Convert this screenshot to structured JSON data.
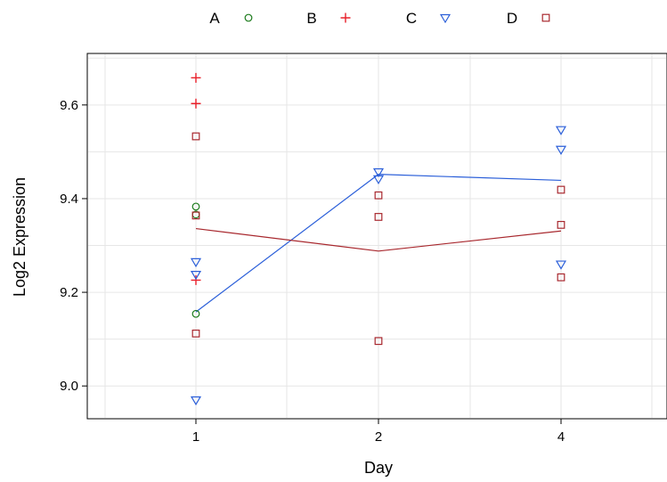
{
  "chart_data": {
    "type": "scatter",
    "xlabel": "Day",
    "ylabel": "Log2 Expression",
    "categories": [
      "1",
      "2",
      "4"
    ],
    "ylim": [
      8.93,
      9.71
    ],
    "yticks": [
      "9.0",
      "9.2",
      "9.4",
      "9.6"
    ],
    "grid": true,
    "legend_position": "top",
    "series": [
      {
        "name": "A",
        "marker": "circle",
        "color": "#1a7a1a",
        "points": [
          [
            1,
            9.383
          ],
          [
            1,
            9.366
          ],
          [
            1,
            9.154
          ]
        ]
      },
      {
        "name": "B",
        "marker": "plus",
        "color": "#e8202a",
        "points": [
          [
            1,
            9.658
          ],
          [
            1,
            9.603
          ],
          [
            1,
            9.226
          ]
        ]
      },
      {
        "name": "C",
        "marker": "triangle-down",
        "color": "#2b5fd9",
        "points": [
          [
            1,
            9.265
          ],
          [
            1,
            9.238
          ],
          [
            1,
            8.97
          ],
          [
            2,
            9.457
          ],
          [
            2,
            9.442
          ],
          [
            4,
            9.547
          ],
          [
            4,
            9.505
          ],
          [
            4,
            9.26
          ]
        ],
        "mean_line": [
          [
            1,
            9.158
          ],
          [
            2,
            9.452
          ],
          [
            4,
            9.439
          ]
        ]
      },
      {
        "name": "D",
        "marker": "square",
        "color": "#a8282e",
        "points": [
          [
            1,
            9.533
          ],
          [
            1,
            9.364
          ],
          [
            1,
            9.112
          ],
          [
            2,
            9.407
          ],
          [
            2,
            9.361
          ],
          [
            2,
            9.096
          ],
          [
            4,
            9.419
          ],
          [
            4,
            9.344
          ],
          [
            4,
            9.232
          ]
        ],
        "mean_line": [
          [
            1,
            9.336
          ],
          [
            2,
            9.288
          ],
          [
            4,
            9.331
          ]
        ]
      }
    ]
  }
}
